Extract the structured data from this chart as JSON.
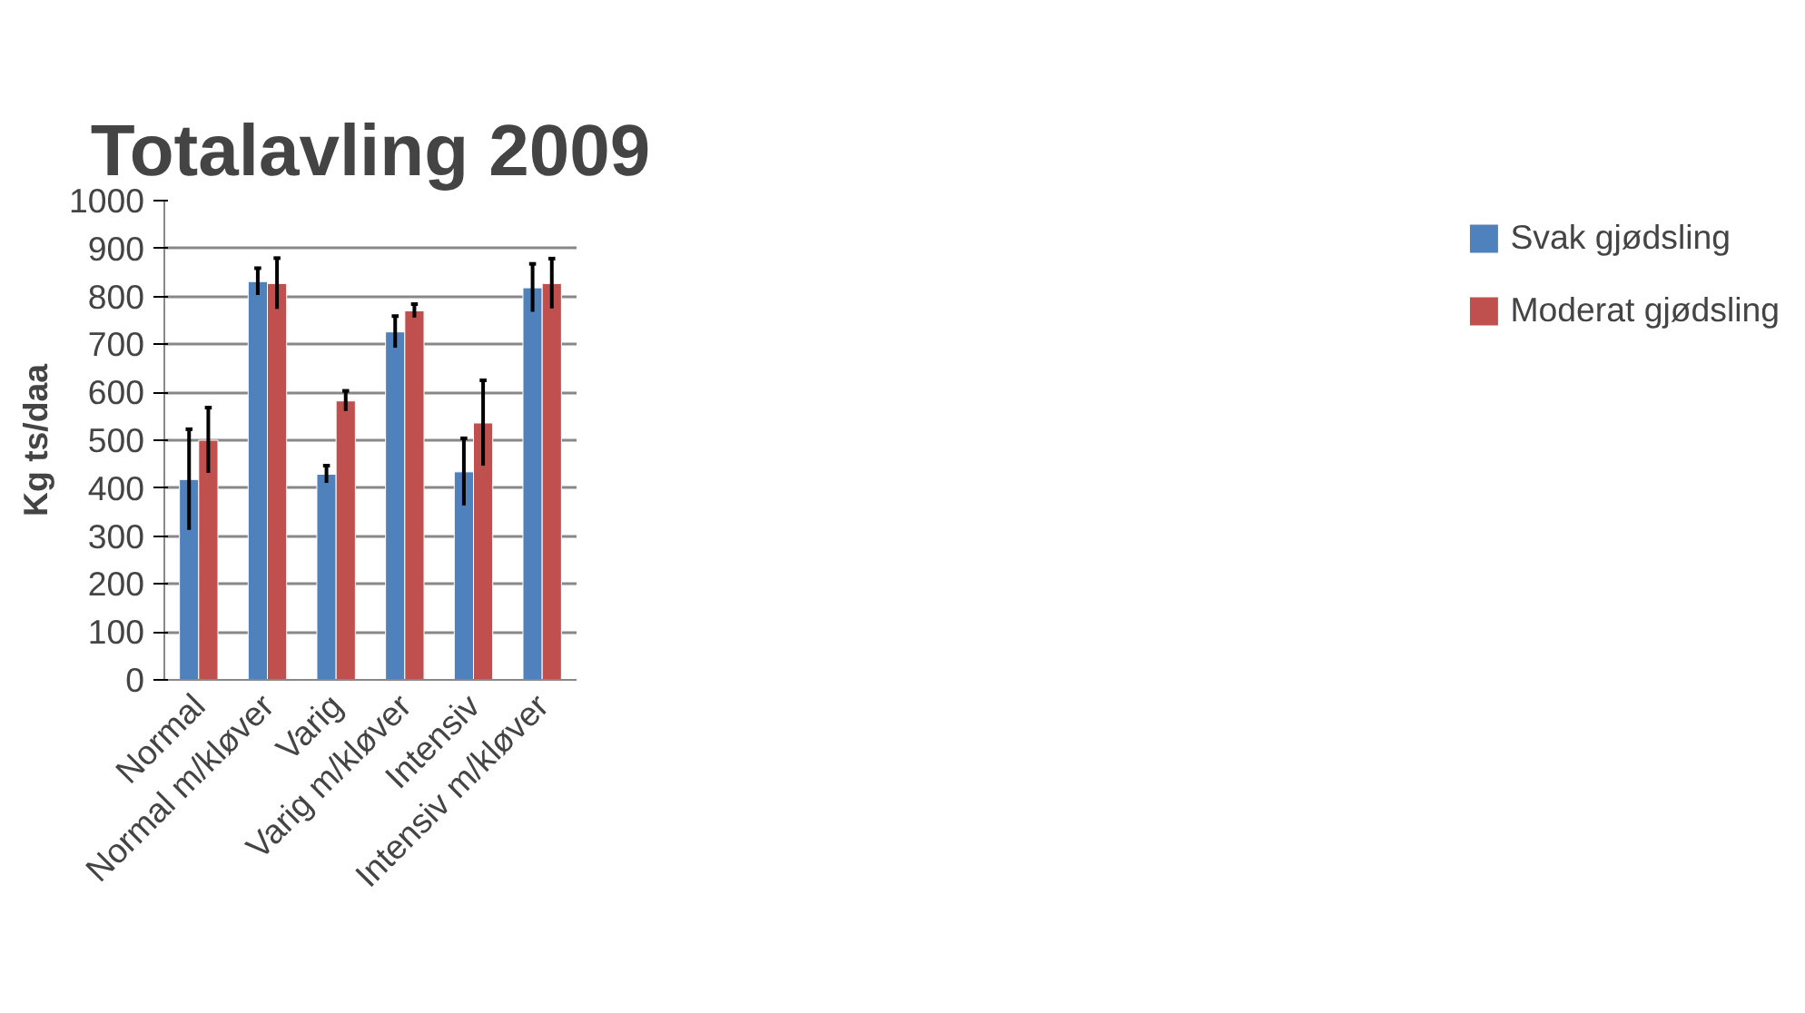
{
  "chart_data": {
    "type": "bar",
    "title": "Totalavling 2009",
    "ylabel": "Kg ts/daa",
    "categories": [
      "Normal",
      "Normal m/kløver",
      "Varig",
      "Varig m/kløver",
      "Intensiv",
      "Intensiv m/kløver"
    ],
    "series": [
      {
        "name": "Svak gjødsling",
        "color": "#4f81bd",
        "values": [
          418,
          831,
          429,
          726,
          434,
          818
        ],
        "errors": [
          105,
          28,
          18,
          33,
          70,
          50
        ]
      },
      {
        "name": "Moderat gjødsling",
        "color": "#c0504d",
        "values": [
          500,
          827,
          582,
          770,
          536,
          827
        ],
        "errors": [
          68,
          53,
          21,
          14,
          89,
          52
        ]
      }
    ],
    "ylim": [
      0,
      1000
    ],
    "yticks": [
      0,
      100,
      200,
      300,
      400,
      500,
      600,
      700,
      800,
      900,
      1000
    ],
    "grid": "y",
    "legend": "right"
  }
}
